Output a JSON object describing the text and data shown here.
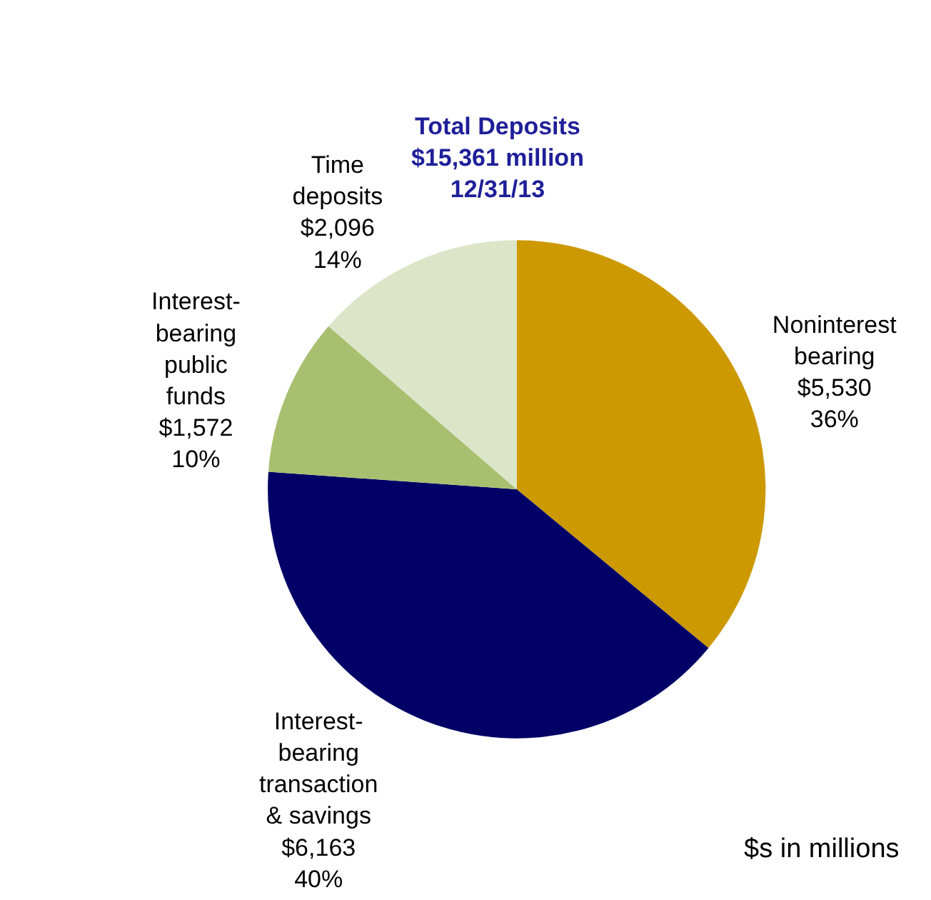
{
  "chart_data": {
    "type": "pie",
    "title": "Total Deposits\n$15,361 million\n12/31/13",
    "categories": [
      "Noninterest\nbearing",
      "Interest-\nbearing\ntransaction\n& savings",
      "Interest-\nbearing\npublic\nfunds",
      "Time\ndeposits"
    ],
    "values": [
      5530,
      6163,
      1572,
      2096
    ],
    "value_labels": [
      "$5,530\n36%",
      "$6,163\n40%",
      "$1,572\n10%",
      "$2,096\n14%"
    ],
    "colors": [
      "#cc9900",
      "#000066",
      "#a8bf6f",
      "#dde5c8"
    ],
    "annotations": [
      "$s in millions"
    ]
  }
}
